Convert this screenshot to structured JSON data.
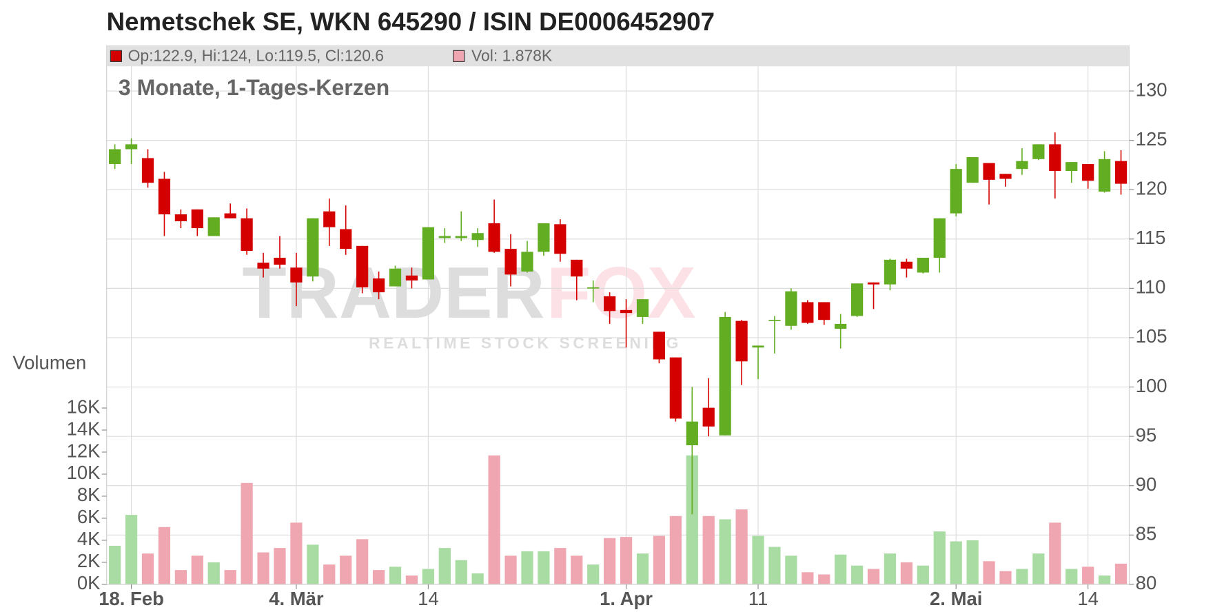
{
  "chart_data": {
    "type": "candlestick",
    "title": "Nemetschek SE, WKN 645290 / ISIN DE0006452907",
    "subtitle": "3 Monate, 1-Tages-Kerzen",
    "legend": {
      "ohlc": "Op:122.9, Hi:124, Lo:119.5, Cl:120.6",
      "volume": "Vol: 1.878K"
    },
    "volume_label": "Volumen",
    "watermark": {
      "brand_left": "TRADER",
      "brand_right": "FOX",
      "tagline": "REALTIME STOCK SCREENING"
    },
    "categories": [
      null,
      "18. Feb",
      null,
      null,
      null,
      null,
      null,
      null,
      null,
      null,
      null,
      "4. Mär",
      null,
      null,
      null,
      null,
      null,
      null,
      null,
      "14",
      null,
      null,
      null,
      null,
      null,
      null,
      null,
      null,
      null,
      null,
      null,
      "1. Apr",
      null,
      null,
      null,
      null,
      null,
      null,
      null,
      "11",
      null,
      null,
      null,
      null,
      null,
      null,
      null,
      null,
      null,
      null,
      null,
      "2. Mai",
      null,
      null,
      null,
      null,
      null,
      null,
      null,
      "14",
      null,
      null
    ],
    "open": [
      122.6,
      124.1,
      123.2,
      121.1,
      117.5,
      118.0,
      115.3,
      117.6,
      117.1,
      112.6,
      113.1,
      112.1,
      111.2,
      117.8,
      116.0,
      114.3,
      111.0,
      110.2,
      111.3,
      110.9,
      115.1,
      115.1,
      114.9,
      116.6,
      114.0,
      111.7,
      113.7,
      116.5,
      112.9,
      110.0,
      109.2,
      107.8,
      107.1,
      105.6,
      103.0,
      94.1,
      97.9,
      95.1,
      106.7,
      104.0,
      106.7,
      106.2,
      108.6,
      108.6,
      105.9,
      107.2,
      110.6,
      110.4,
      112.7,
      111.6,
      113.1,
      117.6,
      120.7,
      122.7,
      121.6,
      122.1,
      123.1,
      124.6,
      121.9,
      122.6,
      119.8,
      122.9
    ],
    "high": [
      124.6,
      125.2,
      124.1,
      121.8,
      118.0,
      118.0,
      117.2,
      118.6,
      118.1,
      113.6,
      115.3,
      113.6,
      117.1,
      119.1,
      118.4,
      114.3,
      111.7,
      112.3,
      112.1,
      116.2,
      116.1,
      117.8,
      116.1,
      119.0,
      115.5,
      114.8,
      116.6,
      117.0,
      112.9,
      110.8,
      109.6,
      108.9,
      108.9,
      105.6,
      103.0,
      100.0,
      100.9,
      107.6,
      106.8,
      104.2,
      107.2,
      110.0,
      108.8,
      108.6,
      107.4,
      110.5,
      110.6,
      113.0,
      113.0,
      113.1,
      117.1,
      122.6,
      123.3,
      122.7,
      121.6,
      124.2,
      124.6,
      125.8,
      122.8,
      122.6,
      123.9,
      124
    ],
    "low": [
      122.1,
      122.6,
      120.2,
      115.3,
      116.1,
      115.3,
      115.3,
      117.1,
      113.4,
      111.1,
      112.0,
      108.2,
      110.7,
      114.3,
      113.4,
      109.5,
      108.9,
      110.2,
      110.0,
      110.9,
      114.6,
      114.8,
      114.2,
      113.6,
      110.2,
      111.6,
      113.3,
      112.7,
      108.8,
      108.6,
      106.4,
      104.0,
      106.4,
      102.4,
      96.5,
      87.1,
      95.0,
      95.1,
      100.2,
      100.8,
      103.4,
      105.8,
      106.4,
      106.3,
      103.9,
      107.1,
      107.9,
      109.8,
      111.1,
      111.5,
      111.6,
      117.3,
      120.7,
      118.5,
      120.3,
      121.5,
      123.0,
      119.1,
      120.7,
      120.1,
      119.7,
      119.5
    ],
    "close": [
      124.1,
      124.6,
      120.7,
      117.5,
      116.8,
      116.1,
      117.2,
      117.1,
      113.8,
      112.0,
      112.4,
      110.6,
      117.1,
      116.2,
      114.0,
      110.1,
      109.6,
      112.0,
      110.8,
      116.2,
      115.3,
      115.3,
      115.6,
      113.7,
      111.4,
      113.7,
      116.6,
      113.5,
      111.2,
      110.1,
      107.7,
      107.5,
      108.9,
      102.8,
      96.8,
      96.5,
      96.0,
      107.1,
      102.6,
      104.2,
      106.8,
      109.7,
      106.5,
      106.8,
      106.4,
      110.5,
      110.4,
      112.9,
      112.0,
      113.1,
      117.1,
      122.1,
      123.3,
      121.0,
      121.1,
      122.9,
      124.6,
      121.9,
      122.8,
      120.9,
      123.1,
      120.6
    ],
    "volume": [
      3.5,
      6.3,
      2.8,
      5.2,
      1.3,
      2.6,
      2.0,
      1.3,
      9.2,
      2.9,
      3.3,
      5.6,
      3.6,
      1.8,
      2.6,
      4.1,
      1.3,
      1.6,
      0.8,
      1.4,
      3.3,
      2.2,
      1.0,
      11.7,
      2.6,
      3.0,
      3.0,
      3.3,
      2.6,
      1.8,
      4.2,
      4.3,
      2.8,
      4.4,
      6.2,
      11.7,
      6.2,
      5.9,
      6.8,
      4.4,
      3.4,
      2.6,
      1.1,
      0.9,
      2.7,
      1.7,
      1.4,
      2.8,
      2.0,
      1.7,
      4.8,
      3.9,
      4.0,
      2.1,
      1.2,
      1.4,
      2.8,
      5.6,
      1.4,
      1.6,
      0.8,
      1.878
    ],
    "ylim": [
      80,
      132.5
    ],
    "yticks": [
      80,
      85,
      90,
      95,
      100,
      105,
      110,
      115,
      120,
      125,
      130
    ],
    "y2lim": [
      0,
      47
    ],
    "y2ticks": [
      {
        "value": 0,
        "label": "0K"
      },
      {
        "value": 2,
        "label": "2K"
      },
      {
        "value": 4,
        "label": "4K"
      },
      {
        "value": 6,
        "label": "6K"
      },
      {
        "value": 8,
        "label": "8K"
      },
      {
        "value": 10,
        "label": "10K"
      },
      {
        "value": 12,
        "label": "12K"
      },
      {
        "value": 14,
        "label": "14K"
      },
      {
        "value": 16,
        "label": "16K"
      }
    ],
    "colors": {
      "up": "#62ad22",
      "down": "#d40000",
      "volume_up": "#a9dca2",
      "volume_down": "#f0a6b0"
    },
    "grid": true
  }
}
